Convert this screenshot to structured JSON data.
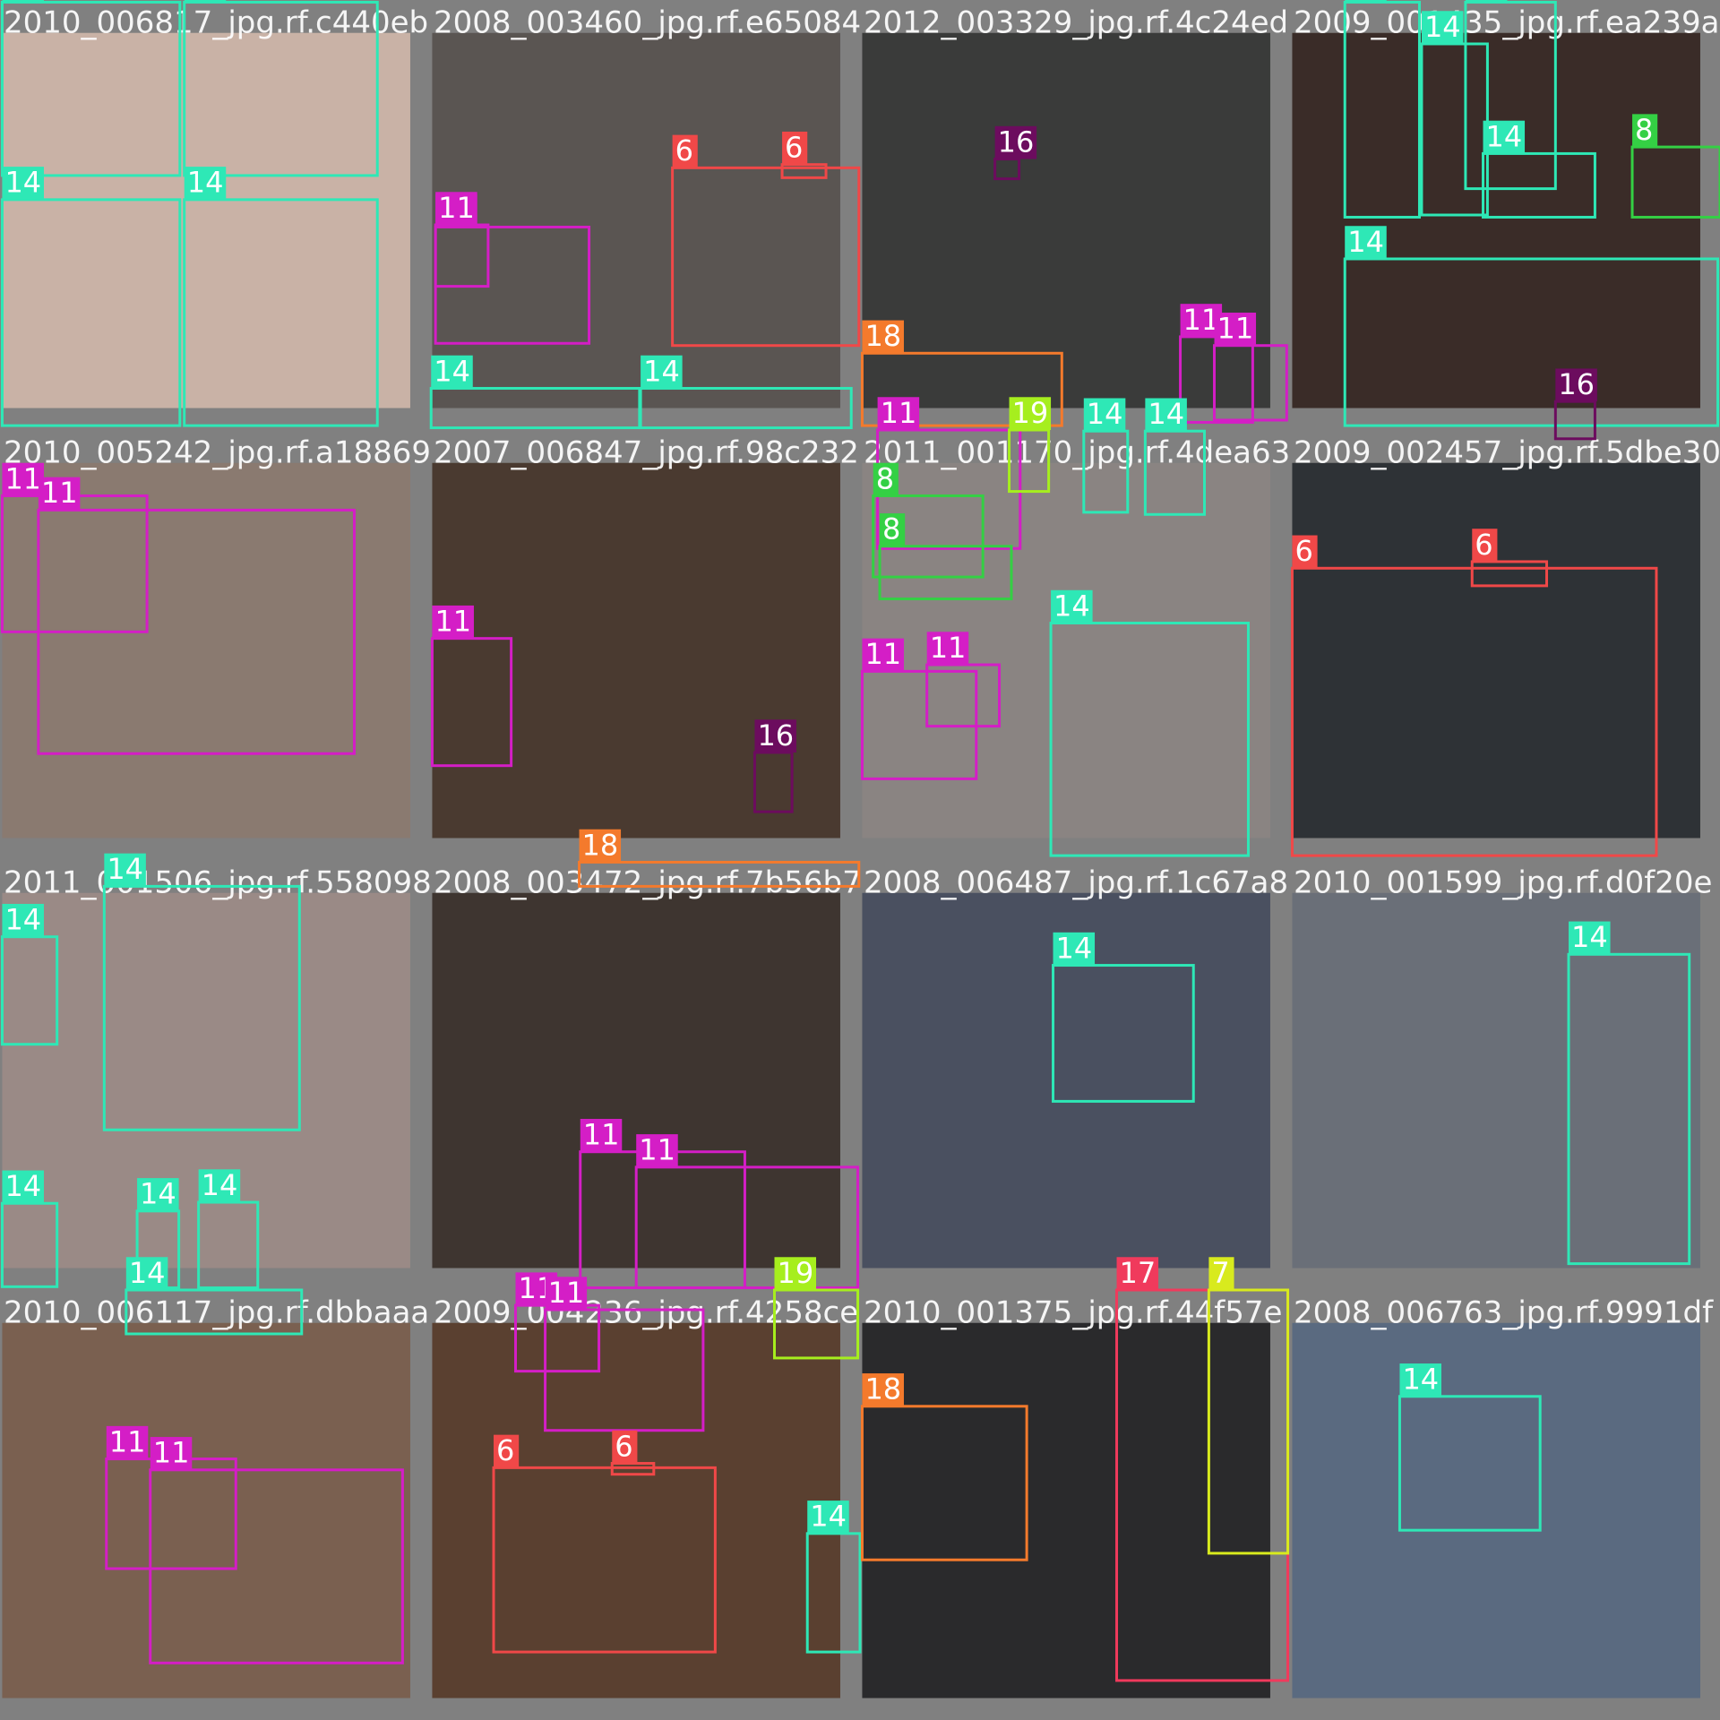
{
  "palette": {
    "14": "#2ee8b6",
    "11": "#d41ec6",
    "6": "#f04848",
    "16": "#6c0c5e",
    "18": "#f47a2c",
    "8": "#34d044",
    "19": "#a6ee1e",
    "7": "#d8ea1e",
    "17": "#f03a5c"
  },
  "tiles": [
    {
      "filename": "2010_006817_jpg.rf.c440eb",
      "boxes": [
        "14",
        "14",
        "14",
        "14"
      ]
    },
    {
      "filename": "2008_003460_jpg.rf.e65084",
      "boxes": [
        "11",
        "11",
        "6",
        "6",
        "14",
        "14"
      ]
    },
    {
      "filename": "2012_003329_jpg.rf.4c24ed",
      "boxes": [
        "16",
        "18",
        "11",
        "11"
      ]
    },
    {
      "filename": "2009_001435_jpg.rf.ea239a",
      "boxes": [
        "14",
        "14",
        "14",
        "14",
        "8",
        "14",
        "16"
      ]
    },
    {
      "filename": "2010_005242_jpg.rf.a18869",
      "boxes": [
        "11",
        "11"
      ]
    },
    {
      "filename": "2007_006847_jpg.rf.98c232",
      "boxes": [
        "11",
        "16"
      ]
    },
    {
      "filename": "2011_001170_jpg.rf.4dea63",
      "boxes": [
        "11",
        "19",
        "8",
        "8",
        "14",
        "14",
        "11",
        "11",
        "14"
      ]
    },
    {
      "filename": "2009_002457_jpg.rf.5dbe30",
      "boxes": [
        "6",
        "6"
      ]
    },
    {
      "filename": "2011_001506_jpg.rf.558098",
      "boxes": [
        "14",
        "14",
        "14",
        "14",
        "14",
        "14"
      ]
    },
    {
      "filename": "2008_003472_jpg.rf.7b56b7",
      "boxes": [
        "18",
        "11",
        "11"
      ]
    },
    {
      "filename": "2008_006487_jpg.rf.1c67a8",
      "boxes": [
        "14"
      ]
    },
    {
      "filename": "2010_001599_jpg.rf.d0f20e",
      "boxes": [
        "14"
      ]
    },
    {
      "filename": "2010_006117_jpg.rf.dbbaaa",
      "boxes": [
        "11",
        "11"
      ]
    },
    {
      "filename": "2009_004236_jpg.rf.4258ce",
      "boxes": [
        "11",
        "11",
        "19",
        "6",
        "6",
        "14"
      ]
    },
    {
      "filename": "2010_001375_jpg.rf.44f57e",
      "boxes": [
        "18",
        "17",
        "7"
      ]
    },
    {
      "filename": "2008_006763_jpg.rf.9991df",
      "boxes": [
        "14"
      ]
    }
  ]
}
